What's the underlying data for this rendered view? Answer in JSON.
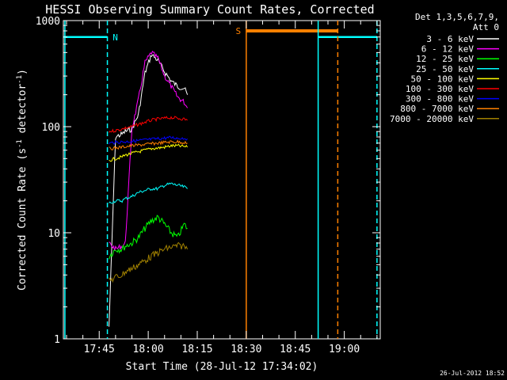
{
  "window": {
    "title": "HESSI Observing Summary Count Rates, Corrected"
  },
  "chart_data": {
    "type": "line",
    "title": "HESSI Observing Summary Count Rates, Corrected",
    "xlabel": "Start Time (28-Jul-12 17:34:02)",
    "ylabel_main": "Corrected Count Rate (s",
    "ylabel_sup1": "-1",
    "ylabel_mid": " detector",
    "ylabel_sup2": "-1",
    "ylabel_end": ")",
    "y_scale": "log",
    "ylim": [
      1,
      1000
    ],
    "xlim": [
      "17:34:02",
      "19:11:00"
    ],
    "x_ticks": [
      "17:45",
      "18:00",
      "18:15",
      "18:30",
      "18:45",
      "19:00"
    ],
    "y_ticks": [
      "1",
      "10",
      "100",
      "1000"
    ],
    "legend": {
      "placement": "top-right, outside plot",
      "header": [
        "Det 1,3,5,6,7,9,",
        "Att 0"
      ],
      "entries": [
        {
          "label": "3 - 6 keV",
          "color": "#ffffff"
        },
        {
          "label": "6 - 12 keV",
          "color": "#ff00ff"
        },
        {
          "label": "12 - 25 keV",
          "color": "#00ff00"
        },
        {
          "label": "25 - 50 keV",
          "color": "#00ffff"
        },
        {
          "label": "50 - 100 keV",
          "color": "#ffff00"
        },
        {
          "label": "100 - 300 keV",
          "color": "#ff0000"
        },
        {
          "label": "300 - 800 keV",
          "color": "#0000ff"
        },
        {
          "label": "800 - 7000 keV",
          "color": "#ff8000"
        },
        {
          "label": "7000 - 20000 keV",
          "color": "#a08000"
        }
      ]
    },
    "series": [
      {
        "name": "3 - 6 keV",
        "color": "#ffffff",
        "x": [
          "17:48",
          "17:50",
          "17:52",
          "17:53",
          "17:55",
          "17:57",
          "17:59",
          "18:01",
          "18:03",
          "18:05",
          "18:07",
          "18:09",
          "18:11",
          "18:12"
        ],
        "values": [
          1.3,
          80,
          85,
          90,
          95,
          130,
          320,
          480,
          420,
          330,
          270,
          240,
          230,
          200
        ]
      },
      {
        "name": "6 - 12 keV",
        "color": "#ff00ff",
        "x": [
          "17:48",
          "17:50",
          "17:52",
          "17:53",
          "17:55",
          "17:57",
          "17:59",
          "18:01",
          "18:03",
          "18:05",
          "18:07",
          "18:09",
          "18:11",
          "18:12"
        ],
        "values": [
          8,
          7,
          7.5,
          8,
          95,
          180,
          400,
          500,
          440,
          300,
          240,
          190,
          170,
          150
        ]
      },
      {
        "name": "12 - 25 keV",
        "color": "#00ff00",
        "x": [
          "17:48",
          "17:50",
          "17:52",
          "17:53",
          "17:55",
          "17:57",
          "17:59",
          "18:01",
          "18:03",
          "18:05",
          "18:07",
          "18:09",
          "18:11",
          "18:12"
        ],
        "values": [
          6,
          7,
          7,
          7.5,
          8,
          9,
          11,
          13,
          14,
          12,
          10,
          9,
          12,
          11
        ]
      },
      {
        "name": "25 - 50 keV",
        "color": "#00ffff",
        "x": [
          "17:48",
          "17:50",
          "17:52",
          "17:53",
          "17:55",
          "17:57",
          "17:59",
          "18:01",
          "18:03",
          "18:05",
          "18:07",
          "18:09",
          "18:11",
          "18:12"
        ],
        "values": [
          19,
          20,
          20,
          21,
          22,
          24,
          25,
          26,
          26,
          28,
          29,
          28,
          27,
          26
        ]
      },
      {
        "name": "50 - 100 keV",
        "color": "#ffff00",
        "x": [
          "17:48",
          "17:50",
          "17:52",
          "17:53",
          "17:55",
          "17:57",
          "17:59",
          "18:01",
          "18:03",
          "18:05",
          "18:07",
          "18:09",
          "18:11",
          "18:12"
        ],
        "values": [
          48,
          50,
          52,
          54,
          56,
          58,
          60,
          62,
          63,
          64,
          66,
          66,
          65,
          64
        ]
      },
      {
        "name": "100 - 300 keV",
        "color": "#ff0000",
        "x": [
          "17:48",
          "17:50",
          "17:52",
          "17:53",
          "17:55",
          "17:57",
          "17:59",
          "18:01",
          "18:03",
          "18:05",
          "18:07",
          "18:09",
          "18:11",
          "18:12"
        ],
        "values": [
          90,
          92,
          95,
          97,
          100,
          105,
          110,
          115,
          118,
          120,
          122,
          120,
          118,
          115
        ]
      },
      {
        "name": "300 - 800 keV",
        "color": "#0000ff",
        "x": [
          "17:48",
          "17:50",
          "17:52",
          "17:53",
          "17:55",
          "17:57",
          "17:59",
          "18:01",
          "18:03",
          "18:05",
          "18:07",
          "18:09",
          "18:11",
          "18:12"
        ],
        "values": [
          70,
          71,
          72,
          72,
          73,
          74,
          75,
          76,
          77,
          78,
          79,
          78,
          78,
          77
        ]
      },
      {
        "name": "800 - 7000 keV",
        "color": "#ff8000",
        "x": [
          "17:48",
          "17:50",
          "17:52",
          "17:53",
          "17:55",
          "17:57",
          "17:59",
          "18:01",
          "18:03",
          "18:05",
          "18:07",
          "18:09",
          "18:11",
          "18:12"
        ],
        "values": [
          62,
          63,
          64,
          65,
          66,
          67,
          68,
          69,
          70,
          71,
          72,
          72,
          71,
          70
        ]
      },
      {
        "name": "7000 - 20000 keV",
        "color": "#a08000",
        "x": [
          "17:48",
          "17:50",
          "17:52",
          "17:53",
          "17:55",
          "17:57",
          "17:59",
          "18:01",
          "18:03",
          "18:05",
          "18:07",
          "18:09",
          "18:11",
          "18:12"
        ],
        "values": [
          3.5,
          3.8,
          4.0,
          4.3,
          4.6,
          5.0,
          5.5,
          6.0,
          6.5,
          7.0,
          7.3,
          7.5,
          7.5,
          7.0
        ]
      }
    ],
    "flags": [
      {
        "label": "N",
        "color": "#00ffff",
        "intervals": [
          [
            "17:34:02",
            "17:47:30"
          ],
          [
            "18:52:00",
            "19:10:00"
          ]
        ],
        "level": 700
      },
      {
        "label": "S",
        "color": "#ff8000",
        "intervals": [
          [
            "18:30:00",
            "18:58:00"
          ]
        ],
        "level": 800
      }
    ],
    "vlines": [
      {
        "time": "17:34:30",
        "color": "#00ffff",
        "style": "solid"
      },
      {
        "time": "17:47:30",
        "color": "#00ffff",
        "style": "dashed"
      },
      {
        "time": "18:30:00",
        "color": "#ff8000",
        "style": "solid"
      },
      {
        "time": "18:52:00",
        "color": "#00ffff",
        "style": "solid"
      },
      {
        "time": "18:58:00",
        "color": "#ff8000",
        "style": "dashed"
      },
      {
        "time": "19:10:00",
        "color": "#00ffff",
        "style": "dashed"
      }
    ],
    "footer": "26-Jul-2012 18:52"
  }
}
